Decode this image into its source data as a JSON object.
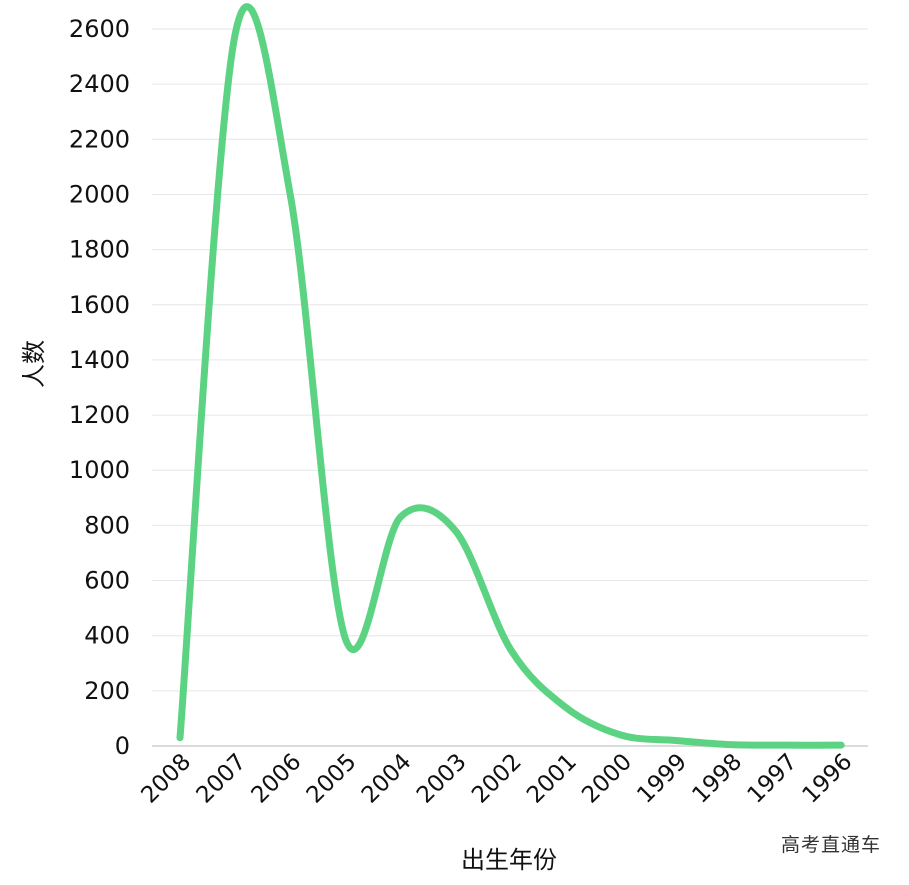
{
  "chart_data": {
    "type": "line",
    "categories": [
      "2008",
      "2007",
      "2006",
      "2005",
      "2004",
      "2003",
      "2002",
      "2001",
      "2000",
      "1999",
      "1998",
      "1997",
      "1996"
    ],
    "series": [
      {
        "values": [
          30,
          2580,
          2000,
          390,
          830,
          780,
          350,
          140,
          40,
          20,
          5,
          3,
          3
        ]
      }
    ],
    "xlabel": "出生年份",
    "ylabel": "人数",
    "ylim": [
      0,
      2600
    ],
    "yticks": [
      0,
      200,
      400,
      600,
      800,
      1000,
      1200,
      1400,
      1600,
      1800,
      2000,
      2200,
      2400,
      2600
    ],
    "grid": true,
    "line_color": "#5cd383"
  },
  "watermark": "高考直通车"
}
